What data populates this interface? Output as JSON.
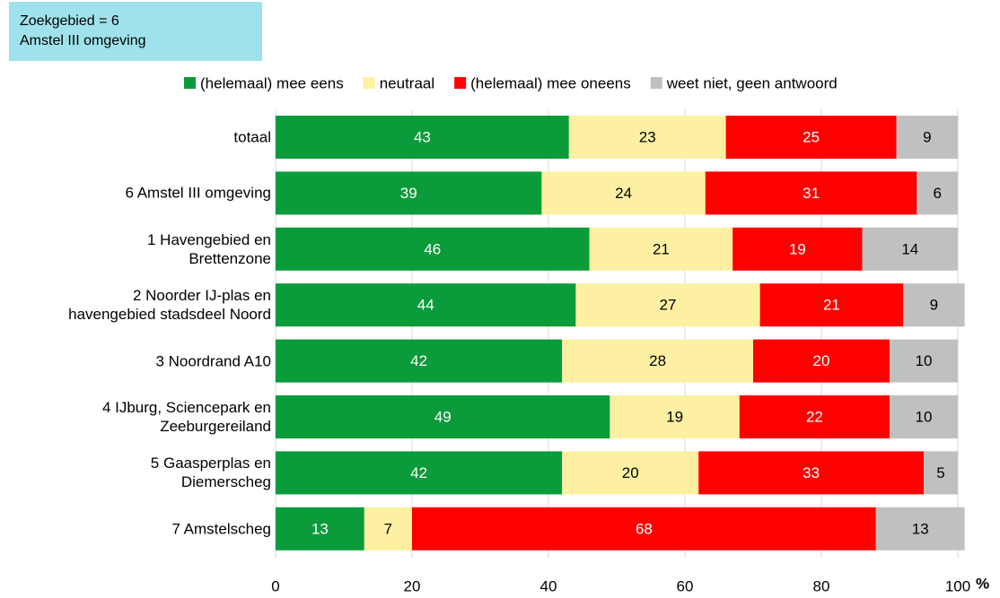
{
  "chart_data": {
    "type": "stacked_barh",
    "annotation": "Zoekgebied = 6\nAmstel III omgeving",
    "categories": [
      "totaal",
      "6 Amstel III omgeving",
      "1 Havengebied en\nBrettenzone",
      "2 Noorder IJ-plas en\nhavengebied stadsdeel Noord",
      "3 Noordrand A10",
      "4 IJburg, Sciencepark en\nZeeburgereiland",
      "5 Gaasperplas en\nDiemerscheg",
      "7 Amstelscheg"
    ],
    "series": [
      {
        "name": "(helemaal) mee eens",
        "color": "#0b9b3b",
        "label_color": "#ffffff",
        "values": [
          43,
          39,
          46,
          44,
          42,
          49,
          42,
          13
        ]
      },
      {
        "name": "neutraal",
        "color": "#fdf0a2",
        "label_color": "#000000",
        "values": [
          23,
          24,
          21,
          27,
          28,
          19,
          20,
          7
        ]
      },
      {
        "name": "(helemaal) mee oneens",
        "color": "#ff0000",
        "label_color": "#ffffff",
        "values": [
          25,
          31,
          19,
          21,
          20,
          22,
          33,
          68
        ]
      },
      {
        "name": "weet niet, geen antwoord",
        "color": "#c0c0c0",
        "label_color": "#000000",
        "values": [
          9,
          6,
          14,
          9,
          10,
          10,
          5,
          13
        ]
      }
    ],
    "xlim": [
      0,
      100
    ],
    "xticks": [
      0,
      20,
      40,
      60,
      80,
      100
    ],
    "x_unit": "%",
    "grid": true,
    "legend": "top"
  }
}
